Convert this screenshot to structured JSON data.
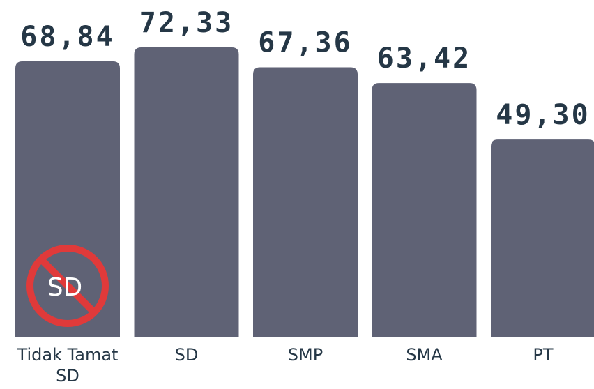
{
  "chart_data": {
    "type": "bar",
    "categories": [
      "Tidak Tamat SD",
      "SD",
      "SMP",
      "SMA",
      "PT"
    ],
    "values": [
      68.84,
      72.33,
      67.36,
      63.42,
      49.3
    ],
    "value_labels": [
      "68,84",
      "72,33",
      "67,36",
      "63,42",
      "49,30"
    ],
    "color": "#5f6275",
    "ylim": [
      0,
      84
    ],
    "annotation": "SD"
  }
}
